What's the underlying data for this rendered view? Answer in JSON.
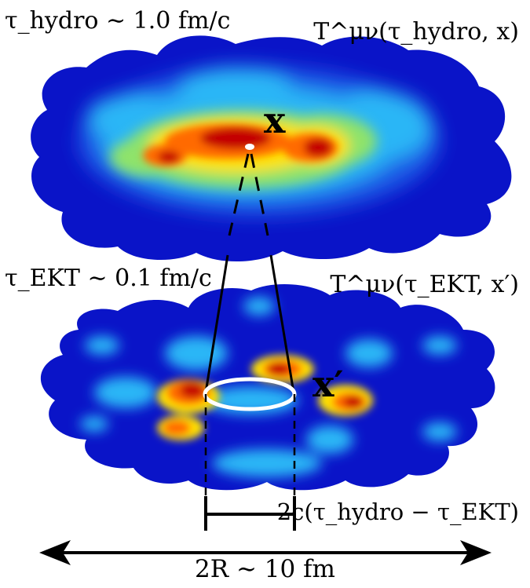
{
  "labels": {
    "tau_hydro": "τ_hydro ∼ 1.0 fm/c",
    "T_hydro": "T^μν(τ_hydro, x)",
    "tau_ekt": "τ_EKT ∼ 0.1 fm/c",
    "T_ekt": "T^μν(τ_EKT, x′)",
    "point_x": "x",
    "point_xprime": "x′",
    "causal_width": "2c(τ_hydro − τ_EKT)",
    "system_size": "2R ∼ 10 fm"
  },
  "colors": {
    "blob_base": "#0a14c8",
    "blob_light": "#29b6f6",
    "blob_mid": "#8fe36b",
    "blob_yellow": "#ffe100",
    "blob_orange": "#ff6a00",
    "blob_red": "#c40000",
    "ring": "#ffffff",
    "ink": "#000000"
  }
}
